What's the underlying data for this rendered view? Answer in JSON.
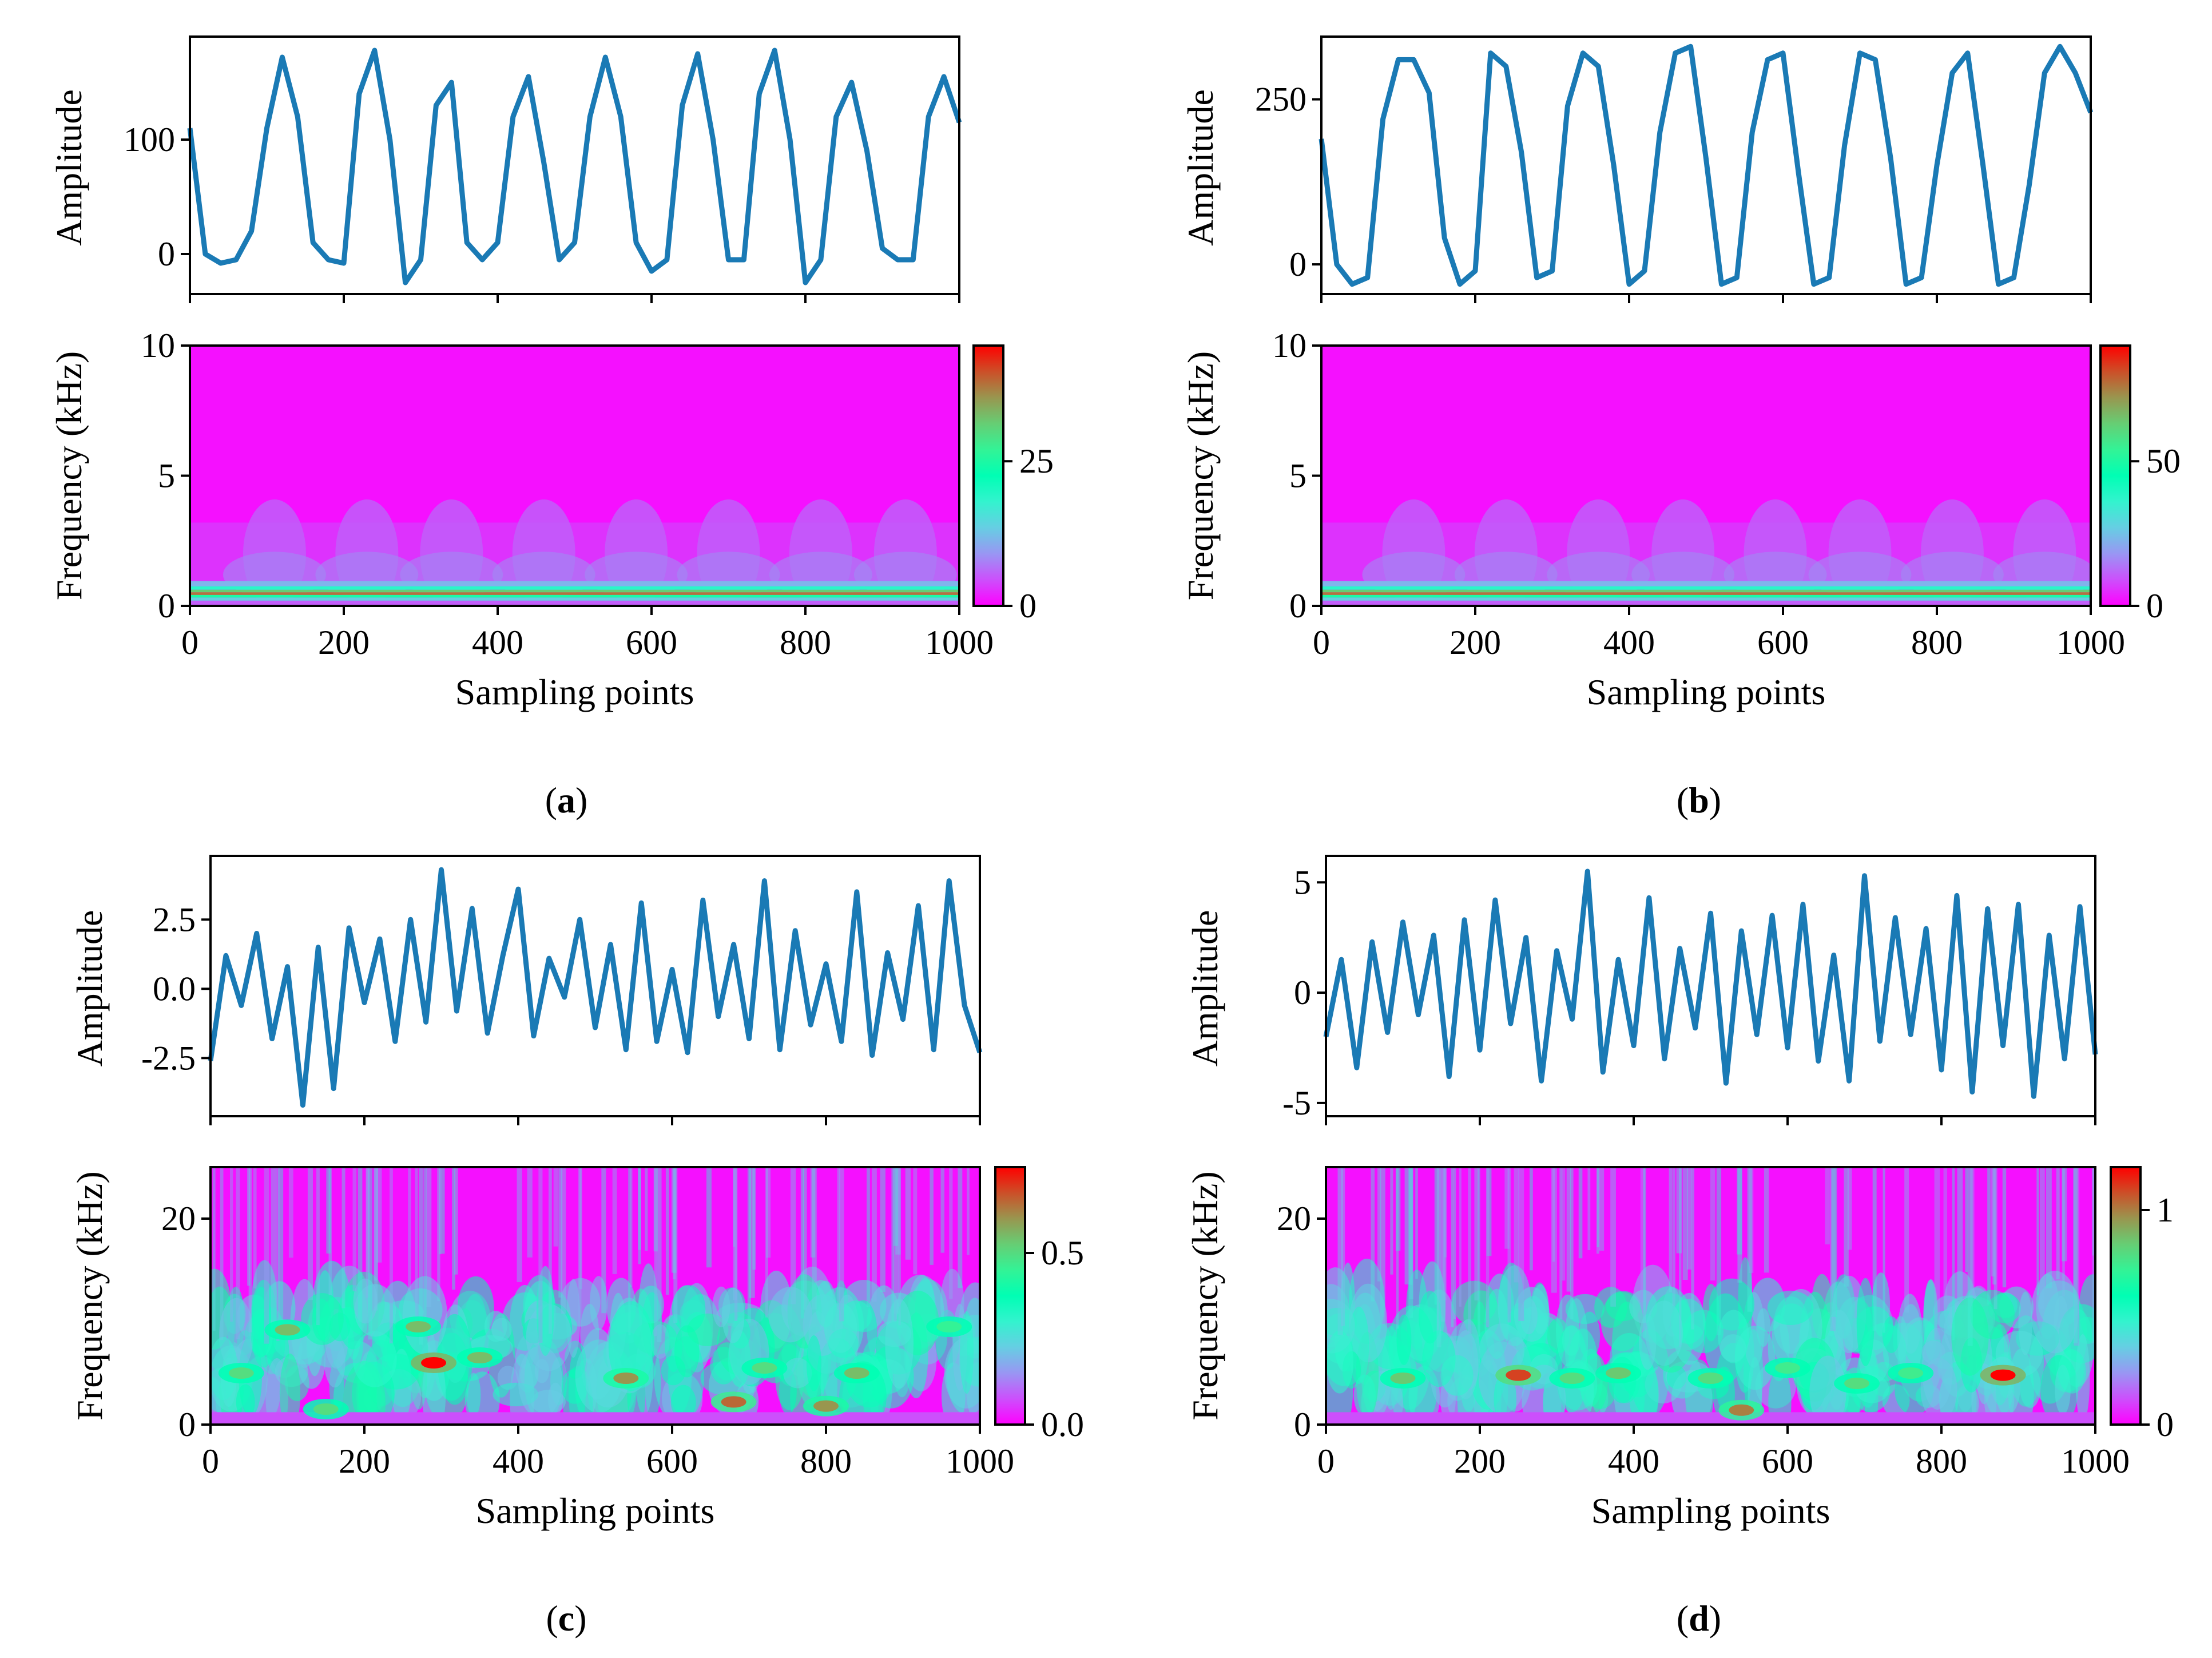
{
  "figure": {
    "colors": {
      "signal": "#1a7ab5",
      "axes": "#000000",
      "colormap": "rainbow"
    }
  },
  "chart_data": [
    {
      "id": "a",
      "panel_label": "a",
      "signal": {
        "type": "line",
        "ylabel": "Amplitude",
        "xlim": [
          0,
          1000
        ],
        "ylim": [
          -35,
          190
        ],
        "yticks": [
          0,
          100
        ],
        "ytick_labels": [
          "0",
          "100"
        ],
        "x": [
          0,
          20,
          40,
          60,
          80,
          100,
          120,
          140,
          160,
          180,
          200,
          220,
          240,
          260,
          280,
          300,
          320,
          340,
          360,
          380,
          400,
          420,
          440,
          460,
          480,
          500,
          520,
          540,
          560,
          580,
          600,
          620,
          640,
          660,
          680,
          700,
          720,
          740,
          760,
          780,
          800,
          820,
          840,
          860,
          880,
          900,
          920,
          940,
          960,
          980,
          1000
        ],
        "y": [
          110,
          0,
          -8,
          -5,
          20,
          110,
          172,
          120,
          10,
          -5,
          -8,
          140,
          178,
          100,
          -25,
          -5,
          130,
          150,
          10,
          -5,
          10,
          120,
          155,
          80,
          -5,
          10,
          120,
          172,
          120,
          10,
          -15,
          -5,
          130,
          175,
          100,
          -5,
          -5,
          140,
          178,
          100,
          -25,
          -5,
          120,
          150,
          90,
          5,
          -5,
          -5,
          120,
          155,
          115
        ]
      },
      "spectrogram": {
        "type": "heatmap",
        "ylabel": "Frequency (kHz)",
        "xlabel": "Sampling points",
        "xlim": [
          0,
          1000
        ],
        "ylim": [
          0,
          10
        ],
        "xticks": [
          0,
          200,
          400,
          600,
          800,
          1000
        ],
        "xtick_labels": [
          "0",
          "200",
          "400",
          "600",
          "800",
          "1000"
        ],
        "yticks": [
          0,
          5,
          10
        ],
        "ytick_labels": [
          "0",
          "5",
          "10"
        ],
        "colorbar": {
          "range": [
            0,
            45
          ],
          "ticks": [
            0,
            25
          ],
          "tick_labels": [
            "0",
            "25"
          ]
        },
        "energy_band_khz": [
          0.2,
          0.8
        ],
        "peak_frequency_khz": 0.5,
        "burst_centers": [
          110,
          230,
          340,
          460,
          580,
          700,
          820,
          930
        ]
      }
    },
    {
      "id": "b",
      "panel_label": "b",
      "signal": {
        "type": "line",
        "ylabel": "Amplitude",
        "xlim": [
          0,
          1000
        ],
        "ylim": [
          -45,
          345
        ],
        "yticks": [
          0,
          250
        ],
        "ytick_labels": [
          "0",
          "250"
        ],
        "x": [
          0,
          20,
          40,
          60,
          80,
          100,
          120,
          140,
          160,
          180,
          200,
          220,
          240,
          260,
          280,
          300,
          320,
          340,
          360,
          380,
          400,
          420,
          440,
          460,
          480,
          500,
          520,
          540,
          560,
          580,
          600,
          620,
          640,
          660,
          680,
          700,
          720,
          740,
          760,
          780,
          800,
          820,
          840,
          860,
          880,
          900,
          920,
          940,
          960,
          980,
          1000
        ],
        "y": [
          190,
          0,
          -30,
          -20,
          220,
          310,
          310,
          260,
          40,
          -30,
          -10,
          320,
          300,
          170,
          -20,
          -10,
          240,
          320,
          300,
          150,
          -30,
          -10,
          200,
          320,
          330,
          160,
          -30,
          -20,
          200,
          310,
          320,
          140,
          -30,
          -20,
          180,
          320,
          310,
          160,
          -30,
          -20,
          150,
          290,
          320,
          150,
          -30,
          -20,
          120,
          290,
          330,
          290,
          230
        ]
      },
      "spectrogram": {
        "type": "heatmap",
        "ylabel": "Frequency (kHz)",
        "xlabel": "Sampling points",
        "xlim": [
          0,
          1000
        ],
        "ylim": [
          0,
          10
        ],
        "xticks": [
          0,
          200,
          400,
          600,
          800,
          1000
        ],
        "xtick_labels": [
          "0",
          "200",
          "400",
          "600",
          "800",
          "1000"
        ],
        "yticks": [
          0,
          5,
          10
        ],
        "ytick_labels": [
          "0",
          "5",
          "10"
        ],
        "colorbar": {
          "range": [
            0,
            90
          ],
          "ticks": [
            0,
            50
          ],
          "tick_labels": [
            "0",
            "50"
          ]
        },
        "energy_band_khz": [
          0.2,
          0.8
        ],
        "peak_frequency_khz": 0.55,
        "burst_centers": [
          120,
          240,
          360,
          470,
          590,
          700,
          820,
          940
        ]
      }
    },
    {
      "id": "c",
      "panel_label": "c",
      "signal": {
        "type": "line",
        "ylabel": "Amplitude",
        "xlim": [
          0,
          1000
        ],
        "ylim": [
          -4.6,
          4.8
        ],
        "yticks": [
          -2.5,
          0.0,
          2.5
        ],
        "ytick_labels": [
          "-2.5",
          "0.0",
          "2.5"
        ],
        "x": [
          0,
          20,
          40,
          60,
          80,
          100,
          120,
          140,
          160,
          180,
          200,
          220,
          240,
          260,
          280,
          300,
          320,
          340,
          360,
          380,
          400,
          420,
          440,
          460,
          480,
          500,
          520,
          540,
          560,
          580,
          600,
          620,
          640,
          660,
          680,
          700,
          720,
          740,
          760,
          780,
          800,
          820,
          840,
          860,
          880,
          900,
          920,
          940,
          960,
          980,
          1000
        ],
        "y": [
          -2.6,
          1.2,
          -0.6,
          2.0,
          -1.8,
          0.8,
          -4.2,
          1.5,
          -3.6,
          2.2,
          -0.5,
          1.8,
          -1.9,
          2.5,
          -1.2,
          4.3,
          -0.8,
          2.9,
          -1.6,
          1.2,
          3.6,
          -1.7,
          1.1,
          -0.3,
          2.5,
          -1.4,
          1.6,
          -2.2,
          3.1,
          -1.9,
          0.7,
          -2.3,
          3.2,
          -1.0,
          1.6,
          -1.8,
          3.9,
          -2.2,
          2.1,
          -1.3,
          0.9,
          -1.9,
          3.5,
          -2.4,
          1.3,
          -1.1,
          3.0,
          -2.2,
          3.9,
          -0.6,
          -2.3
        ]
      },
      "spectrogram": {
        "type": "heatmap",
        "ylabel": "Frequency (kHz)",
        "xlabel": "Sampling points",
        "xlim": [
          0,
          1000
        ],
        "ylim": [
          0,
          25
        ],
        "xticks": [
          0,
          200,
          400,
          600,
          800,
          1000
        ],
        "xtick_labels": [
          "0",
          "200",
          "400",
          "600",
          "800",
          "1000"
        ],
        "yticks": [
          0,
          20
        ],
        "ytick_labels": [
          "0",
          "20"
        ],
        "colorbar": {
          "range": [
            0.0,
            0.75
          ],
          "ticks": [
            0.0,
            0.5
          ],
          "tick_labels": [
            "0.0",
            "0.5"
          ]
        },
        "hotspots": [
          {
            "x": 290,
            "f": 6.0,
            "level": 0.75
          },
          {
            "x": 270,
            "f": 9.5,
            "level": 0.55
          },
          {
            "x": 100,
            "f": 9.2,
            "level": 0.55
          },
          {
            "x": 40,
            "f": 5.0,
            "level": 0.5
          },
          {
            "x": 540,
            "f": 4.5,
            "level": 0.6
          },
          {
            "x": 680,
            "f": 2.2,
            "level": 0.65
          },
          {
            "x": 800,
            "f": 1.8,
            "level": 0.6
          },
          {
            "x": 840,
            "f": 5.0,
            "level": 0.55
          },
          {
            "x": 350,
            "f": 6.5,
            "level": 0.55
          },
          {
            "x": 720,
            "f": 5.5,
            "level": 0.5
          },
          {
            "x": 150,
            "f": 1.5,
            "level": 0.5
          },
          {
            "x": 960,
            "f": 9.5,
            "level": 0.45
          }
        ]
      }
    },
    {
      "id": "d",
      "panel_label": "d",
      "signal": {
        "type": "line",
        "ylabel": "Amplitude",
        "xlim": [
          0,
          1000
        ],
        "ylim": [
          -5.6,
          6.2
        ],
        "yticks": [
          -5,
          0,
          5
        ],
        "ytick_labels": [
          "-5",
          "0",
          "5"
        ],
        "x": [
          0,
          20,
          40,
          60,
          80,
          100,
          120,
          140,
          160,
          180,
          200,
          220,
          240,
          260,
          280,
          300,
          320,
          340,
          360,
          380,
          400,
          420,
          440,
          460,
          480,
          500,
          520,
          540,
          560,
          580,
          600,
          620,
          640,
          660,
          680,
          700,
          720,
          740,
          760,
          780,
          800,
          820,
          840,
          860,
          880,
          900,
          920,
          940,
          960,
          980,
          1000
        ],
        "y": [
          -2.0,
          1.5,
          -3.4,
          2.3,
          -1.8,
          3.2,
          -1.0,
          2.6,
          -3.8,
          3.3,
          -2.6,
          4.2,
          -1.4,
          2.5,
          -4.0,
          1.9,
          -1.2,
          5.5,
          -3.6,
          1.5,
          -2.4,
          4.3,
          -3.0,
          2.0,
          -1.6,
          3.6,
          -4.1,
          2.8,
          -1.9,
          3.5,
          -2.5,
          4.0,
          -3.1,
          1.7,
          -4.0,
          5.3,
          -2.2,
          3.4,
          -1.9,
          2.9,
          -3.5,
          4.4,
          -4.5,
          3.8,
          -2.4,
          4.0,
          -4.7,
          2.6,
          -3.0,
          3.9,
          -2.8
        ]
      },
      "spectrogram": {
        "type": "heatmap",
        "ylabel": "Frequency (kHz)",
        "xlabel": "Sampling points",
        "xlim": [
          0,
          1000
        ],
        "ylim": [
          0,
          25
        ],
        "xticks": [
          0,
          200,
          400,
          600,
          800,
          1000
        ],
        "xtick_labels": [
          "0",
          "200",
          "400",
          "600",
          "800",
          "1000"
        ],
        "yticks": [
          0,
          20
        ],
        "ytick_labels": [
          "0",
          "20"
        ],
        "colorbar": {
          "range": [
            0,
            1.2
          ],
          "ticks": [
            0,
            1
          ],
          "tick_labels": [
            "0",
            "1"
          ]
        },
        "hotspots": [
          {
            "x": 250,
            "f": 4.8,
            "level": 1.1
          },
          {
            "x": 880,
            "f": 4.8,
            "level": 1.2
          },
          {
            "x": 540,
            "f": 1.4,
            "level": 1.0
          },
          {
            "x": 100,
            "f": 4.5,
            "level": 0.85
          },
          {
            "x": 380,
            "f": 5.0,
            "level": 0.85
          },
          {
            "x": 500,
            "f": 4.5,
            "level": 0.8
          },
          {
            "x": 690,
            "f": 4.0,
            "level": 0.8
          },
          {
            "x": 600,
            "f": 5.5,
            "level": 0.75
          },
          {
            "x": 320,
            "f": 4.5,
            "level": 0.8
          },
          {
            "x": 760,
            "f": 5.0,
            "level": 0.75
          }
        ]
      }
    }
  ]
}
